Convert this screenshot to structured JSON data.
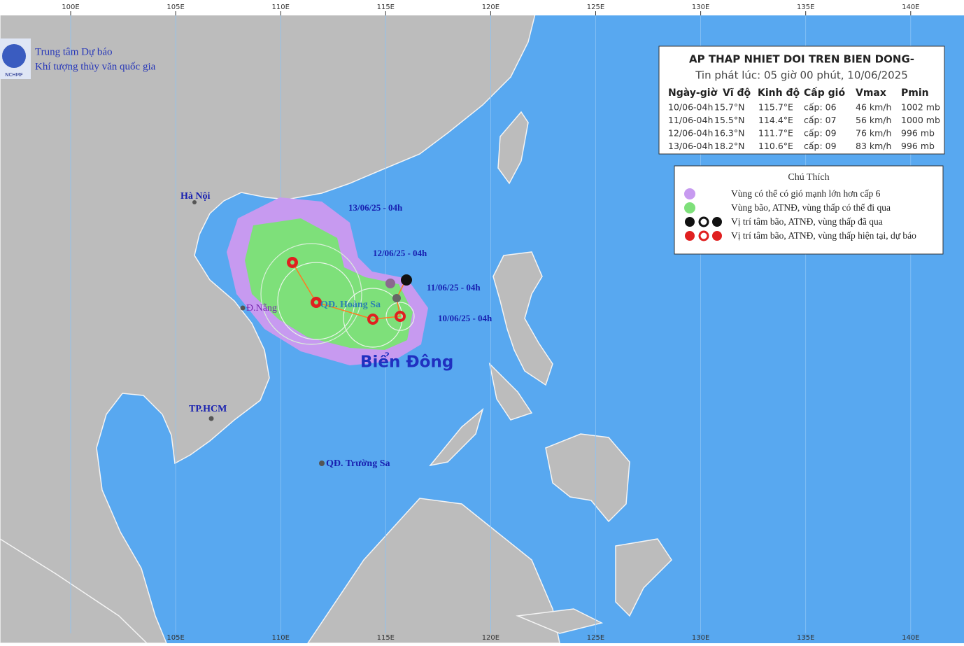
{
  "graticule": {
    "top_labels": [
      "100E",
      "105E",
      "110E",
      "115E",
      "120E",
      "125E",
      "130E",
      "135E",
      "140E"
    ],
    "bottom_labels": [
      "105E",
      "110E",
      "115E",
      "120E",
      "125E",
      "130E",
      "135E",
      "140E"
    ]
  },
  "agency": {
    "logo": "NCHMF",
    "line1": "Trung tâm Dự báo",
    "line2": "Khí tượng thủy văn quốc gia"
  },
  "bulletin": {
    "title": "AP THAP NHIET DOI TREN BIEN DONG-",
    "subtitle": "Tin phát lúc: 05 giờ 00 phút, 10/06/2025",
    "columns": [
      "Ngày-giờ",
      "Vĩ độ",
      "Kinh độ",
      "Cấp gió",
      "Vmax",
      "Pmin"
    ],
    "rows": [
      [
        "10/06-04h",
        "15.7°N",
        "115.7°E",
        "cấp: 06",
        "46 km/h",
        "1002 mb"
      ],
      [
        "11/06-04h",
        "15.5°N",
        "114.4°E",
        "cấp: 07",
        "56 km/h",
        "1000 mb"
      ],
      [
        "12/06-04h",
        "16.3°N",
        "111.7°E",
        "cấp: 09",
        "76 km/h",
        "996 mb"
      ],
      [
        "13/06-04h",
        "18.2°N",
        "110.6°E",
        "cấp: 09",
        "83 km/h",
        "996 mb"
      ]
    ]
  },
  "legend": {
    "title": "Chú Thích",
    "items": [
      "Vùng có thể có gió mạnh lớn hơn cấp 6",
      "Vùng bão, ATNĐ, vùng thấp có thể đi qua",
      "Vị trí tâm bão, ATNĐ, vùng thấp đã qua",
      "Vị trí tâm bão, ATNĐ, vùng thấp hiện tại, dự báo"
    ]
  },
  "places": [
    "Hà Nội",
    "Đ.Nẵng",
    "TP.HCM",
    "QĐ. Hoàng Sa",
    "QĐ. Trường Sa",
    "Biển Đông"
  ],
  "track_labels": [
    "13/06/25 - 04h",
    "12/06/25 - 04h",
    "11/06/25 - 04h",
    "10/06/25 - 04h"
  ]
}
